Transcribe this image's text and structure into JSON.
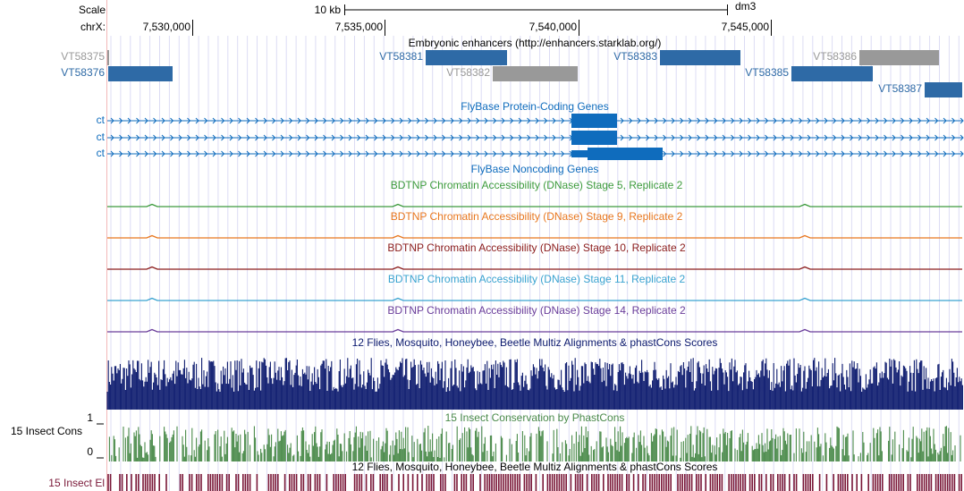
{
  "ruler": {
    "scale": "Scale",
    "span": "10 kb",
    "assembly": "dm3",
    "chrom": "chrX:",
    "positions": [
      "7,530,000",
      "7,535,000",
      "7,540,000",
      "7,545,000"
    ]
  },
  "tracks": {
    "enhancers": {
      "title": "Embryonic enhancers (http://enhancers.starklab.org/)",
      "features": [
        {
          "label": "VT58375",
          "color": "#999999"
        },
        {
          "label": "VT58376",
          "color": "#2e6aa6"
        },
        {
          "label": "VT58381",
          "color": "#2e6aa6"
        },
        {
          "label": "VT58382",
          "color": "#999999"
        },
        {
          "label": "VT58383",
          "color": "#2e6aa6"
        },
        {
          "label": "VT58386",
          "color": "#999999"
        },
        {
          "label": "VT58385",
          "color": "#2e6aa6"
        },
        {
          "label": "VT58387",
          "color": "#2e6aa6"
        }
      ]
    },
    "genes": {
      "title": "FlyBase Protein-Coding Genes",
      "rows": [
        "ct",
        "ct",
        "ct"
      ],
      "color": "#0f6cbd"
    },
    "noncoding": {
      "title": "FlyBase Noncoding Genes"
    },
    "dnase": [
      {
        "title": "BDTNP Chromatin Accessibility (DNase) Stage 5, Replicate 2",
        "color": "#3d9b3d"
      },
      {
        "title": "BDTNP Chromatin Accessibility (DNase) Stage 9, Replicate 2",
        "color": "#e8771f"
      },
      {
        "title": "BDTNP Chromatin Accessibility (DNase) Stage 10, Replicate 2",
        "color": "#8b1c1c"
      },
      {
        "title": "BDTNP Chromatin Accessibility (DNase) Stage 11, Replicate 2",
        "color": "#3aa3d0"
      },
      {
        "title": "BDTNP Chromatin Accessibility (DNase) Stage 14, Replicate 2",
        "color": "#6a3d9a"
      }
    ],
    "multiz": {
      "title": "12 Flies, Mosquito, Honeybee, Beetle Multiz Alignments & phastCons Scores",
      "color": "#0c1a6e"
    },
    "cons": {
      "title": "15 Insect Conservation by PhastCons",
      "side_label": "15 Insect Cons",
      "max": 1,
      "min": 0,
      "color": "#4a8a4a"
    },
    "elements": {
      "title": "12 Flies, Mosquito, Honeybee, Beetle Multiz Alignments & phastCons Scores",
      "side_label": "15 Insect El",
      "color": "#7a1838"
    }
  }
}
